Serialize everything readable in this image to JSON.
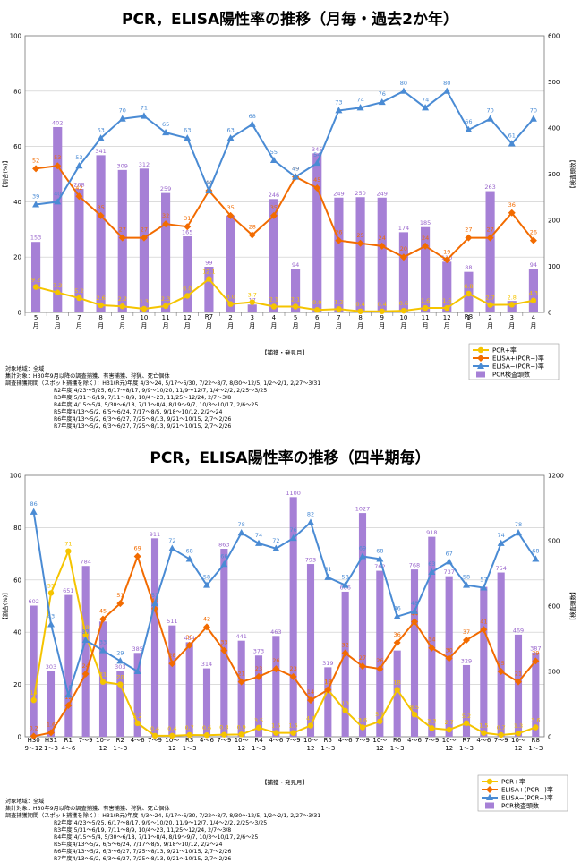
{
  "legend_labels": [
    "PCR+率",
    "ELISA+(PCR−)率",
    "ELISA−(PCR−)率",
    "PCR検査頭数"
  ],
  "colors": {
    "pcr": "#f5c400",
    "elisa_pos": "#f26b00",
    "elisa_neg": "#4a8bd4",
    "bar": "#a680d6",
    "bar_label": "#9966cc"
  },
  "chart_data": [
    {
      "type": "bar",
      "title": "PCR，ELISA陽性率の推移（月毎・過去2か年）",
      "xlabel": "【捕獲・発見月】",
      "ylabel": "【割合(%)】",
      "y2label": "【検査頭数】",
      "ylim": [
        0,
        100
      ],
      "y2lim": [
        0,
        600
      ],
      "yticks": [
        "0",
        "20",
        "40",
        "60",
        "80",
        "100"
      ],
      "y2ticks": [
        "0",
        "100",
        "200",
        "300",
        "400",
        "500",
        "600"
      ],
      "categories": [
        "5\n月",
        "6\n月",
        "7\n月",
        "8\n月",
        "9\n月",
        "10\n月",
        "11\n月",
        "12\n月",
        "1\n月",
        "2\n月",
        "3\n月",
        "4\n月",
        "5\n月",
        "6\n月",
        "7\n月",
        "8\n月",
        "9\n月",
        "10\n月",
        "11\n月",
        "12\n月",
        "1\n月",
        "2\n月",
        "3\n月",
        "4\n月"
      ],
      "year_marks": [
        {
          "index": 8,
          "label": "R7"
        },
        {
          "index": 20,
          "label": "R8"
        }
      ],
      "series": [
        {
          "name": "PCR+率",
          "values": [
            9.2,
            7.2,
            5.2,
            2.6,
            2.2,
            1.3,
            2.3,
            6.0,
            12.1,
            3.0,
            3.7,
            2.1,
            2.1,
            0.9,
            1.2,
            0.4,
            0.4,
            0.6,
            1.6,
            1.6,
            6.8,
            2.7,
            2.8,
            4.3
          ],
          "labels": [
            "9.2",
            "7.2",
            "5.2",
            "2.6",
            "2.2",
            "1.3",
            "2.3",
            "6.0",
            "12.1",
            "3.0",
            "3.7",
            "2.1",
            "2.1",
            "0.9",
            "1.2",
            "0.4",
            "0.4",
            "0.6",
            "1.6",
            "1.6",
            "6.8",
            "2.7",
            "2.8",
            "4.3"
          ]
        },
        {
          "name": "ELISA+(PCR−)率",
          "values": [
            52,
            53,
            42,
            35,
            27,
            27,
            32,
            31,
            44,
            35,
            28,
            35,
            49,
            45,
            26,
            25,
            24,
            20,
            24,
            19,
            27,
            27,
            36,
            26
          ],
          "labels": [
            "52",
            "53",
            "42",
            "35",
            "27",
            "27",
            "32",
            "31",
            "44",
            "35",
            "28",
            "35",
            "49",
            "45",
            "26",
            "25",
            "24",
            "20",
            "24",
            "19",
            "27",
            "27",
            "36",
            "26"
          ]
        },
        {
          "name": "ELISA−(PCR−)率",
          "values": [
            39,
            40,
            53,
            63,
            70,
            71,
            65,
            63,
            44,
            63,
            68,
            55,
            49,
            54,
            73,
            74,
            76,
            80,
            74,
            80,
            66,
            70,
            61,
            70
          ],
          "labels": [
            "39",
            "40",
            "53",
            "63",
            "70",
            "71",
            "65",
            "63",
            "44",
            "63",
            "68",
            "55",
            "49",
            "54",
            "73",
            "74",
            "76",
            "80",
            "74",
            "80",
            "66",
            "70",
            "61",
            "70"
          ]
        },
        {
          "name": "PCR検査頭数",
          "values": [
            153,
            402,
            268,
            341,
            309,
            312,
            259,
            165,
            99,
            210,
            17,
            246,
            94,
            345,
            249,
            250,
            249,
            174,
            185,
            110,
            88,
            263,
            25,
            94
          ],
          "labels": [
            "153",
            "402",
            "268",
            "341",
            "309",
            "312",
            "259",
            "165",
            "99",
            "",
            "17",
            "246",
            "94",
            "345",
            "249",
            "250",
            "249",
            "174",
            "185",
            "110",
            "88",
            "263",
            "",
            "94"
          ]
        }
      ],
      "notes": [
        "対象地域：全域",
        "集計対象：H30年9月以降の調査捕獲、有害捕獲、狩猟、死亡個体",
        "調査捕獲期間（スポット捕獲を除く）：H31(R元)年度 4/3～24, 5/17～6/30, 7/22～8/7, 8/30～12/5, 1/2～2/1, 2/27～3/31",
        "R2年度 4/23～5/25, 6/17～8/17, 9/9～10/20, 11/9～12/7, 1/4～2/2, 2/25～3/25",
        "R3年度 5/31～6/19, 7/11～8/9, 10/4～23, 11/25～12/24, 2/7～3/8",
        "R4年度 4/15～5/4, 5/30～6/18, 7/11～8/4, 8/19～9/7, 10/3～10/17, 2/6～25",
        "R5年度4/13～5/2, 6/5～6/24, 7/17～8/5, 9/18～10/12, 2/2～24",
        "R6年度4/13～5/2, 6/3～6/27, 7/25～8/13, 9/21～10/15, 2/7～2/26",
        "R7年度4/13～5/2, 6/3～6/27, 7/25～8/13, 9/21～10/15, 2/7～2/26"
      ]
    },
    {
      "type": "bar",
      "title": "PCR，ELISA陽性率の推移（四半期毎）",
      "xlabel": "【捕獲・発見月】",
      "ylabel": "【割合(%)】",
      "y2label": "【検査頭数】",
      "ylim": [
        0,
        100
      ],
      "y2lim": [
        0,
        1200
      ],
      "yticks": [
        "0",
        "20",
        "40",
        "60",
        "80",
        "100"
      ],
      "y2ticks": [
        "0",
        "300",
        "600",
        "900",
        "1200"
      ],
      "categories": [
        "H30\n9～12",
        "H31\n1～3",
        "R1\n4～6",
        "7～9",
        "10～\n12",
        "R2\n1～3",
        "4～6",
        "7～9",
        "10～\n12",
        "R3\n1～3",
        "4～6",
        "7～9",
        "10～\n12",
        "R4\n1～3",
        "4～6",
        "7～9",
        "10～\n12",
        "R5\n1～3",
        "4～6",
        "7～9",
        "10～\n12",
        "R6\n1～3",
        "4～6",
        "7～9",
        "10～\n12",
        "R7\n1～3",
        "4～6",
        "7～9",
        "10～\n12",
        "R8\n1～3"
      ],
      "series": [
        {
          "name": "PCR+率",
          "values": [
            14,
            55,
            71,
            39,
            21,
            20,
            5.2,
            0.4,
            0.4,
            0.7,
            0.6,
            0.8,
            0.9,
            3.5,
            1.5,
            1.5,
            4.3,
            18,
            10,
            3.6,
            5.9,
            18,
            8.5,
            3.3,
            2.7,
            5.2,
            1.5,
            0.7,
            1.3,
            3.6
          ],
          "labels": [
            "14",
            "55",
            "71",
            "39",
            "21",
            "20",
            "5.2",
            "0.4",
            "0.4",
            "0.7",
            "0.6",
            "0.8",
            "0.9",
            "3.5",
            "1.5",
            "1.5",
            "4.3",
            "18",
            "10",
            "3.6",
            "5.9",
            "18",
            "8.5",
            "3.3",
            "2.7",
            "5.2",
            "1.5",
            "0.7",
            "1.3",
            "3.6"
          ]
        },
        {
          "name": "ELISA+(PCR−)率",
          "values": [
            0.2,
            1.6,
            12,
            24,
            45,
            51,
            69,
            49,
            28,
            35,
            42,
            33,
            21,
            23,
            26,
            23,
            14,
            18,
            32,
            27,
            26,
            36,
            44,
            34,
            30,
            37,
            41,
            25,
            21,
            29
          ],
          "labels": [
            "0.2",
            "1.6",
            "12",
            "24",
            "45",
            "51",
            "69",
            "49",
            "28",
            "35",
            "42",
            "33",
            "21",
            "23",
            "26",
            "23",
            "14",
            "18",
            "32",
            "27",
            "26",
            "36",
            "44",
            "34",
            "30",
            "37",
            "41",
            "25",
            "21",
            "29"
          ]
        },
        {
          "name": "ELISA−(PCR−)率",
          "values": [
            86,
            43,
            16,
            37,
            33,
            29,
            25,
            51,
            72,
            68,
            58,
            66,
            78,
            74,
            72,
            76,
            82,
            61,
            58,
            69,
            68,
            46,
            48,
            63,
            67,
            58,
            57,
            74,
            78,
            68
          ],
          "labels": [
            "86",
            "43",
            "16",
            "37",
            "33",
            "29",
            "",
            "51",
            "72",
            "68",
            "58",
            "66",
            "78",
            "74",
            "72",
            "76",
            "82",
            "61",
            "58",
            "69",
            "68",
            "46",
            "48",
            "63",
            "67",
            "58",
            "57",
            "74",
            "78",
            "68"
          ]
        },
        {
          "name": "PCR検査頭数",
          "values": [
            602,
            303,
            651,
            784,
            529,
            303,
            385,
            911,
            511,
            434,
            314,
            863,
            441,
            373,
            463,
            1100,
            793,
            319,
            666,
            1027,
            762,
            396,
            768,
            918,
            737,
            329,
            688,
            754,
            469,
            387
          ],
          "labels": [
            "602",
            "303",
            "651",
            "784",
            "",
            "303",
            "385",
            "911",
            "511",
            "434",
            "314",
            "863",
            "441",
            "373",
            "463",
            "1100",
            "793",
            "319",
            "666",
            "1027",
            "762",
            "",
            "768",
            "918",
            "737",
            "329",
            "",
            "754",
            "469",
            "387"
          ]
        }
      ],
      "notes": [
        "対象地域：全域",
        "集計対象：H30年9月以降の調査捕獲、有害捕獲、狩猟、死亡個体",
        "調査捕獲期間（スポット捕獲を除く）：H31(R元)年度 4/3～24, 5/17～6/30, 7/22～8/7, 8/30～12/5, 1/2～2/1, 2/27～3/31",
        "R2年度 4/23～5/25, 6/17～8/17, 9/9～10/20, 11/9～12/7, 1/4～2/2, 2/25～3/25",
        "R3年度 5/31～6/19, 7/11～8/9, 10/4～23, 11/25～12/24, 2/7～3/8",
        "R4年度 4/15～5/4, 5/30～6/18, 7/11～8/4, 8/19～9/7, 10/3～10/17, 2/6～25",
        "R5年度4/13～5/2, 6/5～6/24, 7/17～8/5, 9/18～10/12, 2/2～24",
        "R6年度4/13～5/2, 6/3～6/27, 7/25～8/13, 9/21～10/15, 2/7～2/26",
        "R7年度4/13～5/2, 6/3～6/27, 7/25～8/13, 9/21～10/15, 2/7～2/26"
      ]
    }
  ]
}
